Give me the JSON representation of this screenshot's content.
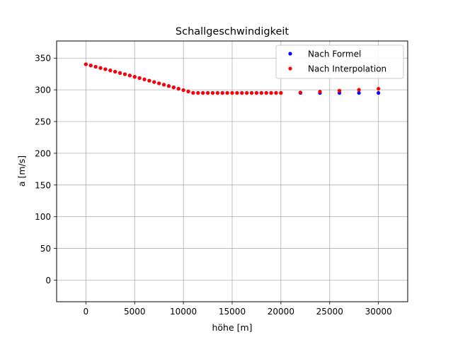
{
  "chart_data": {
    "type": "scatter",
    "title": "Schallgeschwindigkeit",
    "xlabel": "höhe [m]",
    "ylabel": "a [m/s]",
    "xlim": [
      -3000,
      33000
    ],
    "ylim": [
      -34,
      377
    ],
    "xticks": [
      0,
      5000,
      10000,
      15000,
      20000,
      25000,
      30000
    ],
    "yticks": [
      0,
      50,
      100,
      150,
      200,
      250,
      300,
      350
    ],
    "grid": true,
    "legend_position": "top-right",
    "series": [
      {
        "name": "Nach Formel",
        "color": "#0000ff",
        "x": [
          0,
          500,
          1000,
          1500,
          2000,
          2500,
          3000,
          3500,
          4000,
          4500,
          5000,
          5500,
          6000,
          6500,
          7000,
          7500,
          8000,
          8500,
          9000,
          9500,
          10000,
          10500,
          11000,
          11500,
          12000,
          12500,
          13000,
          13500,
          14000,
          14500,
          15000,
          15500,
          16000,
          16500,
          17000,
          17500,
          18000,
          18500,
          19000,
          19500,
          20000,
          22000,
          24000,
          26000,
          28000,
          30000
        ],
        "y": [
          340.3,
          338.4,
          336.4,
          334.5,
          332.5,
          330.6,
          328.6,
          326.6,
          324.6,
          322.6,
          320.5,
          318.5,
          316.5,
          314.4,
          312.3,
          310.2,
          308.1,
          306.0,
          303.9,
          301.7,
          299.5,
          297.4,
          295.2,
          295.1,
          295.1,
          295.1,
          295.1,
          295.1,
          295.1,
          295.1,
          295.1,
          295.1,
          295.1,
          295.1,
          295.1,
          295.1,
          295.1,
          295.1,
          295.1,
          295.1,
          295.1,
          295.1,
          295.1,
          295.1,
          295.1,
          295.1
        ]
      },
      {
        "name": "Nach Interpolation",
        "color": "#ff0000",
        "x": [
          0,
          500,
          1000,
          1500,
          2000,
          2500,
          3000,
          3500,
          4000,
          4500,
          5000,
          5500,
          6000,
          6500,
          7000,
          7500,
          8000,
          8500,
          9000,
          9500,
          10000,
          10500,
          11000,
          11500,
          12000,
          12500,
          13000,
          13500,
          14000,
          14500,
          15000,
          15500,
          16000,
          16500,
          17000,
          17500,
          18000,
          18500,
          19000,
          19500,
          20000,
          22000,
          24000,
          26000,
          28000,
          30000
        ],
        "y": [
          340.3,
          338.4,
          336.4,
          334.5,
          332.5,
          330.6,
          328.6,
          326.6,
          324.6,
          322.6,
          320.5,
          318.5,
          316.5,
          314.4,
          312.3,
          310.2,
          308.1,
          306.0,
          303.9,
          301.7,
          299.5,
          297.4,
          295.2,
          295.1,
          295.1,
          295.1,
          295.1,
          295.1,
          295.1,
          295.1,
          295.1,
          295.1,
          295.1,
          295.1,
          295.1,
          295.1,
          295.1,
          295.1,
          295.1,
          295.1,
          295.1,
          295.8,
          297.1,
          298.6,
          300.1,
          301.7
        ]
      }
    ]
  }
}
